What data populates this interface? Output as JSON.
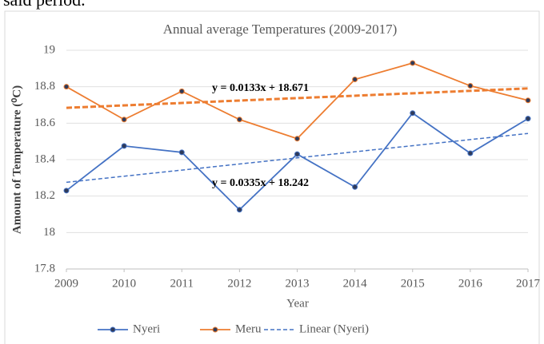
{
  "caption": "said period.",
  "chart_data": {
    "type": "line",
    "title": "Annual average Temperatures (2009-2017)",
    "x_label": "Year",
    "y_label": "Amount of Temperature (⁰C)",
    "x": [
      2009,
      2010,
      2011,
      2012,
      2013,
      2014,
      2015,
      2016,
      2017
    ],
    "xlim": [
      2009,
      2017
    ],
    "xticks": [
      2009,
      2010,
      2011,
      2012,
      2013,
      2014,
      2015,
      2016,
      2017
    ],
    "ylim": [
      17.8,
      19
    ],
    "yticks": [
      17.8,
      18,
      18.2,
      18.4,
      18.6,
      18.8,
      19
    ],
    "grid": true,
    "series": [
      {
        "name": "Nyeri",
        "color": "#4472c4",
        "values": [
          18.23,
          18.475,
          18.44,
          18.125,
          18.43,
          18.25,
          18.655,
          18.435,
          18.625
        ]
      },
      {
        "name": "Meru",
        "color": "#ed7d31",
        "values": [
          18.8,
          18.62,
          18.775,
          18.62,
          18.515,
          18.84,
          18.93,
          18.805,
          18.725
        ]
      }
    ],
    "trendlines": [
      {
        "series": "Nyeri",
        "legend_name": "Linear (Nyeri)",
        "color": "#4472c4",
        "slope": 0.0335,
        "intercept": 18.242,
        "label": "y = 0.0335x + 18.242"
      },
      {
        "series": "Meru",
        "color": "#ed7d31",
        "slope": 0.0133,
        "intercept": 18.671,
        "label": "y = 0.0133x + 18.671"
      }
    ]
  }
}
